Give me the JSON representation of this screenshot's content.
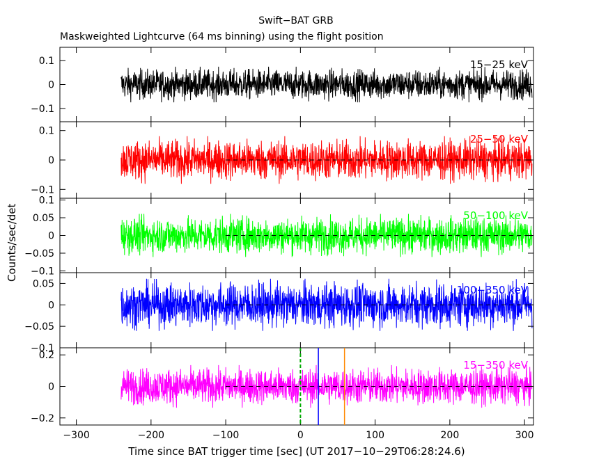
{
  "chart_data": {
    "type": "line",
    "title": "Swift−BAT GRB",
    "subtitle": "Maskweighted Lightcurve (64 ms binning) using the flight position",
    "xlabel": "Time since BAT trigger time [sec] (UT 2017−10−29T06:28:24.6)",
    "ylabel": "Counts/sec/det",
    "xlim": [
      -322,
      312
    ],
    "x_ticks": [
      "−300",
      "−200",
      "−100",
      "0",
      "100",
      "200",
      "300"
    ],
    "x_tick_values": [
      -300,
      -200,
      -100,
      0,
      100,
      200,
      300
    ],
    "data_range_x": [
      -240,
      310
    ],
    "grid": false,
    "panels": [
      {
        "name": "15−25 keV",
        "color": "#000000",
        "ylim": [
          -0.155,
          0.155
        ],
        "yticks": [
          -0.1,
          0,
          0.1
        ],
        "ytick_labels": [
          "−0.1",
          "0",
          "0.1"
        ],
        "noise_amplitude": 0.055,
        "zero_dashed_from": null
      },
      {
        "name": "25−50 keV",
        "color": "#ff0000",
        "ylim": [
          -0.13,
          0.13
        ],
        "yticks": [
          -0.1,
          0,
          0.1
        ],
        "ytick_labels": [
          "−0.1",
          "0",
          "0.1"
        ],
        "noise_amplitude": 0.06,
        "zero_dashed_from": -100
      },
      {
        "name": "50−100 keV",
        "color": "#00ff00",
        "ylim": [
          -0.105,
          0.105
        ],
        "yticks": [
          -0.1,
          -0.05,
          0,
          0.05,
          0.1
        ],
        "ytick_labels": [
          "−0.1",
          "−0.05",
          "0",
          "0.05",
          "0.1"
        ],
        "noise_amplitude": 0.045,
        "zero_dashed_from": -100
      },
      {
        "name": "100−350 keV",
        "color": "#0000ff",
        "ylim": [
          -0.1,
          0.075
        ],
        "yticks": [
          -0.1,
          -0.05,
          0,
          0.05
        ],
        "ytick_labels": [
          "−0.1",
          "−0.05",
          "0",
          "0.05"
        ],
        "noise_amplitude": 0.045,
        "zero_dashed_from": -100
      },
      {
        "name": "15−350 keV",
        "color": "#ff00ff",
        "ylim": [
          -0.245,
          0.245
        ],
        "yticks": [
          -0.2,
          0,
          0.2
        ],
        "ytick_labels": [
          "−0.2",
          "0",
          "0.2"
        ],
        "noise_amplitude": 0.1,
        "zero_dashed_from": -100
      }
    ],
    "markers": [
      {
        "x": 0,
        "color": "#00aa00",
        "style": "dashed"
      },
      {
        "x": 24,
        "color": "#0000ff",
        "style": "solid"
      },
      {
        "x": 59,
        "color": "#ff8800",
        "style": "solid"
      }
    ]
  }
}
